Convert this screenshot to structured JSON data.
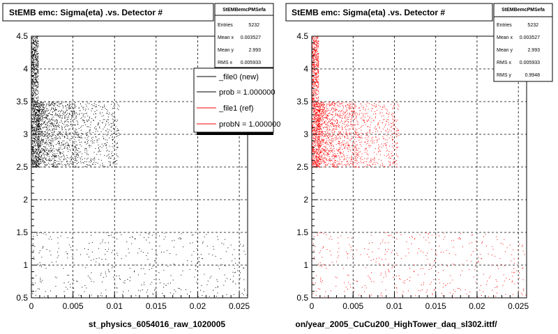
{
  "colors": {
    "file0": "#000000",
    "file1": "#ff0000",
    "grid": "#000000",
    "frame": "#000000"
  },
  "footer_text": "",
  "chart_data": [
    {
      "type": "scatter",
      "title": "StEMB emc: Sigma(eta) .vs. Detector #",
      "xlabel": "st_physics_6054016_raw_1020005",
      "ylabel": "",
      "xlim": [
        0,
        0.026
      ],
      "ylim": [
        0.5,
        4.5
      ],
      "xticks": [
        "0",
        "0.005",
        "0.01",
        "0.015",
        "0.02",
        "0.025"
      ],
      "yticks": [
        "0.5",
        "1",
        "1.5",
        "2",
        "2.5",
        "3",
        "3.5",
        "4",
        "4.5"
      ],
      "grid": true,
      "point_color": "#000000",
      "clusters": [
        {
          "x": [
            0,
            0.0008
          ],
          "y": [
            2.5,
            4.5
          ],
          "density": "very high"
        },
        {
          "x": [
            0.0008,
            0.0055
          ],
          "y": [
            2.5,
            3.5
          ],
          "density": "high"
        },
        {
          "x": [
            0.0055,
            0.0105
          ],
          "y": [
            2.5,
            3.5
          ],
          "density": "low"
        },
        {
          "x": [
            0,
            0.026
          ],
          "y": [
            0.5,
            1.5
          ],
          "density": "low"
        }
      ],
      "stats": {
        "title": "StEMBemcPMSefa",
        "rows": [
          {
            "label": "Entries",
            "value": "5232"
          },
          {
            "label": "Mean x",
            "value": "0.003527"
          },
          {
            "label": "Mean y",
            "value": "2.993"
          },
          {
            "label": "RMS x",
            "value": "0.005933"
          }
        ]
      },
      "legend": {
        "position": "top-right",
        "entries": [
          {
            "label": "_file0 (new)",
            "color": "#000000"
          },
          {
            "label": "prob = 1.000000",
            "color": "#000000"
          },
          {
            "label": "_file1 (ref)",
            "color": "#ff0000"
          },
          {
            "label": "probN = 1.000000",
            "color": "#ff0000"
          }
        ]
      }
    },
    {
      "type": "scatter",
      "title": "StEMB emc: Sigma(eta) .vs. Detector #",
      "xlabel": "on/year_2005_CuCu200_HighTower_daq_sl302.ittf/",
      "ylabel": "",
      "xlim": [
        0,
        0.026
      ],
      "ylim": [
        0.5,
        4.5
      ],
      "xticks": [
        "0",
        "0.005",
        "0.01",
        "0.015",
        "0.02",
        "0.025"
      ],
      "yticks": [
        "0.5",
        "1",
        "1.5",
        "2",
        "2.5",
        "3",
        "3.5",
        "4",
        "4.5"
      ],
      "grid": true,
      "point_color": "#ff0000",
      "clusters": [
        {
          "x": [
            0,
            0.0008
          ],
          "y": [
            2.5,
            4.5
          ],
          "density": "very high"
        },
        {
          "x": [
            0.0008,
            0.0055
          ],
          "y": [
            2.5,
            3.5
          ],
          "density": "high"
        },
        {
          "x": [
            0.0055,
            0.0105
          ],
          "y": [
            2.5,
            3.5
          ],
          "density": "low"
        },
        {
          "x": [
            0,
            0.026
          ],
          "y": [
            0.5,
            1.5
          ],
          "density": "low"
        }
      ],
      "stats": {
        "title": "StEMBemcPMSefa",
        "rows": [
          {
            "label": "Entries",
            "value": "5232"
          },
          {
            "label": "Mean x",
            "value": "0.003527"
          },
          {
            "label": "Mean y",
            "value": "2.993"
          },
          {
            "label": "RMS x",
            "value": "0.005933"
          },
          {
            "label": "RMS y",
            "value": "0.9948"
          }
        ]
      }
    }
  ]
}
